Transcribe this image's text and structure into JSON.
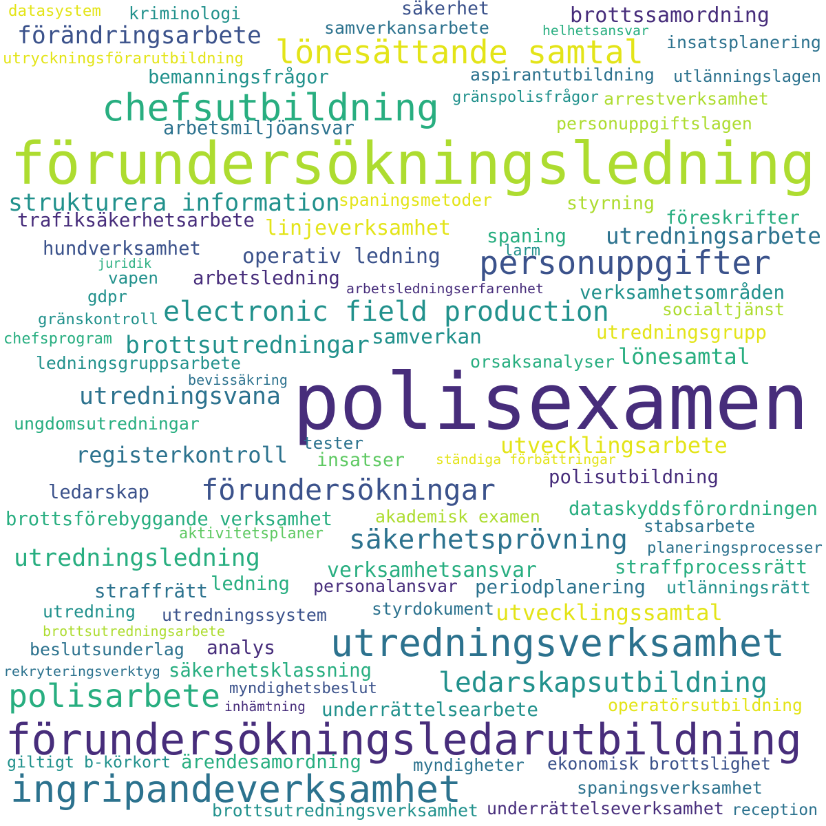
{
  "palette": {
    "purple": "#472d7b",
    "indigo": "#3b528b",
    "blue": "#2c728e",
    "teal": "#21918c",
    "green": "#28ae80",
    "lightgreen": "#5ec962",
    "lime": "#addc30",
    "yellow": "#e3e418"
  },
  "words": [
    {
      "text": "polisexamen",
      "color": "purple"
    },
    {
      "text": "förundersökningsledning",
      "color": "lime"
    },
    {
      "text": "förundersökningsledarutbildning",
      "color": "purple"
    },
    {
      "text": "chefsutbildning",
      "color": "green"
    },
    {
      "text": "lönesättande samtal",
      "color": "yellow"
    },
    {
      "text": "utredningsverksamhet",
      "color": "blue"
    },
    {
      "text": "ingripandeverksamhet",
      "color": "blue"
    },
    {
      "text": "polisarbete",
      "color": "green"
    },
    {
      "text": "personuppgifter",
      "color": "indigo"
    },
    {
      "text": "electronic field production",
      "color": "teal"
    },
    {
      "text": "förundersökningar",
      "color": "indigo"
    },
    {
      "text": "strukturera information",
      "color": "teal"
    },
    {
      "text": "förändringsarbete",
      "color": "indigo"
    },
    {
      "text": "ledarskapsutbildning",
      "color": "teal"
    },
    {
      "text": "säkerhetsprövning",
      "color": "blue"
    },
    {
      "text": "utredningsledning",
      "color": "green"
    },
    {
      "text": "brottsutredningar",
      "color": "teal"
    },
    {
      "text": "utredningsvana",
      "color": "blue"
    },
    {
      "text": "registerkontroll",
      "color": "blue"
    },
    {
      "text": "utvecklingsarbete",
      "color": "yellow"
    },
    {
      "text": "utvecklingssamtal",
      "color": "yellow"
    },
    {
      "text": "brottssamordning",
      "color": "purple"
    },
    {
      "text": "aspirantutbildning",
      "color": "blue"
    },
    {
      "text": "operativ ledning",
      "color": "indigo"
    },
    {
      "text": "utredningsarbete",
      "color": "blue"
    },
    {
      "text": "linjeverksamhet",
      "color": "yellow"
    },
    {
      "text": "arbetsledning",
      "color": "purple"
    },
    {
      "text": "hundverksamhet",
      "color": "indigo"
    },
    {
      "text": "trafiksäkerhetsarbete",
      "color": "purple"
    },
    {
      "text": "bemanningsfrågor",
      "color": "teal"
    },
    {
      "text": "arbetsmiljöansvar",
      "color": "blue"
    },
    {
      "text": "personuppgiftslagen",
      "color": "lime"
    },
    {
      "text": "verksamhetsområden",
      "color": "teal"
    },
    {
      "text": "utredningsgrupp",
      "color": "yellow"
    },
    {
      "text": "lönesamtal",
      "color": "green"
    },
    {
      "text": "samverkan",
      "color": "teal"
    },
    {
      "text": "dataskyddsförordningen",
      "color": "green"
    },
    {
      "text": "polisutbildning",
      "color": "purple"
    },
    {
      "text": "brottsförebyggande verksamhet",
      "color": "green"
    },
    {
      "text": "verksamhetsansvar",
      "color": "green"
    },
    {
      "text": "straffprocessrätt",
      "color": "green"
    },
    {
      "text": "periodplanering",
      "color": "blue"
    },
    {
      "text": "straffrätt",
      "color": "blue"
    },
    {
      "text": "ledning",
      "color": "green"
    },
    {
      "text": "utredning",
      "color": "teal"
    },
    {
      "text": "ledarskap",
      "color": "indigo"
    },
    {
      "text": "insatser",
      "color": "lightgreen"
    },
    {
      "text": "spaning",
      "color": "green"
    },
    {
      "text": "styrning",
      "color": "lime"
    },
    {
      "text": "föreskrifter",
      "color": "green"
    },
    {
      "text": "analys",
      "color": "purple"
    },
    {
      "text": "säkerhet",
      "color": "indigo"
    },
    {
      "text": "kriminologi",
      "color": "teal"
    },
    {
      "text": "datasystem",
      "color": "yellow"
    },
    {
      "text": "samverkansarbete",
      "color": "blue"
    },
    {
      "text": "helhetsansvar",
      "color": "green"
    },
    {
      "text": "insatsplanering",
      "color": "blue"
    },
    {
      "text": "utryckningsförarutbildning",
      "color": "yellow"
    },
    {
      "text": "utlänningslagen",
      "color": "blue"
    },
    {
      "text": "gränspolisfrågor",
      "color": "teal"
    },
    {
      "text": "arrestverksamhet",
      "color": "lime"
    },
    {
      "text": "spaningsmetoder",
      "color": "yellow"
    },
    {
      "text": "larm",
      "color": "teal"
    },
    {
      "text": "juridik",
      "color": "green"
    },
    {
      "text": "vapen",
      "color": "teal"
    },
    {
      "text": "gdpr",
      "color": "teal"
    },
    {
      "text": "arbetsledningserfarenhet",
      "color": "purple"
    },
    {
      "text": "gränskontroll",
      "color": "teal"
    },
    {
      "text": "socialtjänst",
      "color": "lime"
    },
    {
      "text": "chefsprogram",
      "color": "green"
    },
    {
      "text": "ledningsgruppsarbete",
      "color": "teal"
    },
    {
      "text": "orsaksanalyser",
      "color": "green"
    },
    {
      "text": "bevissäkring",
      "color": "blue"
    },
    {
      "text": "ungdomsutredningar",
      "color": "green"
    },
    {
      "text": "tester",
      "color": "blue"
    },
    {
      "text": "ständiga förbättringar",
      "color": "yellow"
    },
    {
      "text": "akademisk examen",
      "color": "lime"
    },
    {
      "text": "stabsarbete",
      "color": "blue"
    },
    {
      "text": "aktivitetsplaner",
      "color": "lightgreen"
    },
    {
      "text": "planeringsprocesser",
      "color": "blue"
    },
    {
      "text": "personalansvar",
      "color": "purple"
    },
    {
      "text": "utlänningsrätt",
      "color": "teal"
    },
    {
      "text": "styrdokument",
      "color": "blue"
    },
    {
      "text": "utredningssystem",
      "color": "indigo"
    },
    {
      "text": "brottsutredningsarbete",
      "color": "lime"
    },
    {
      "text": "beslutsunderlag",
      "color": "blue"
    },
    {
      "text": "säkerhetsklassning",
      "color": "green"
    },
    {
      "text": "rekryteringsverktyg",
      "color": "blue"
    },
    {
      "text": "myndighetsbeslut",
      "color": "indigo"
    },
    {
      "text": "inhämtning",
      "color": "purple"
    },
    {
      "text": "underrättelsearbete",
      "color": "teal"
    },
    {
      "text": "operatörsutbildning",
      "color": "yellow"
    },
    {
      "text": "giltigt b-körkort",
      "color": "teal"
    },
    {
      "text": "ärendesamordning",
      "color": "green"
    },
    {
      "text": "myndigheter",
      "color": "blue"
    },
    {
      "text": "ekonomisk brottslighet",
      "color": "indigo"
    },
    {
      "text": "spaningsverksamhet",
      "color": "blue"
    },
    {
      "text": "brottsutredningsverksamhet",
      "color": "teal"
    },
    {
      "text": "underrättelseverksamhet",
      "color": "purple"
    },
    {
      "text": "reception",
      "color": "blue"
    }
  ]
}
